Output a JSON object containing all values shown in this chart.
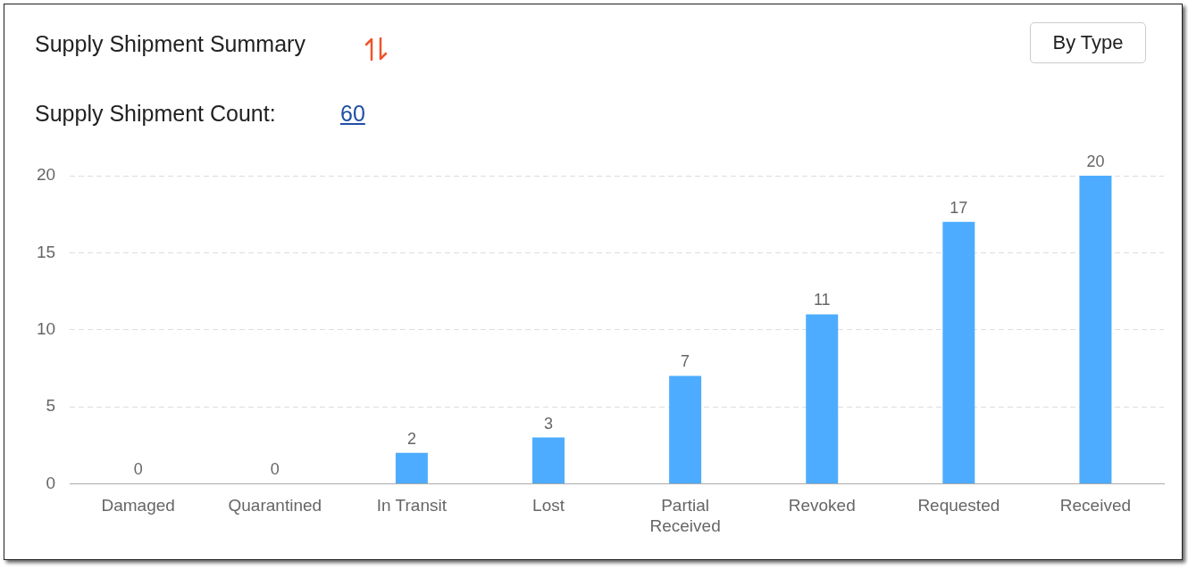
{
  "chart_data": {
    "type": "bar",
    "title": "Supply Shipment Summary",
    "subtitle": "Supply Shipment Count:",
    "annotations": [
      "60",
      "By Type"
    ],
    "categories": [
      "Damaged",
      "Quarantined",
      "In Transit",
      "Lost",
      "Partial Received",
      "Revoked",
      "Requested",
      "Received"
    ],
    "values": [
      0,
      0,
      2,
      3,
      7,
      11,
      17,
      20
    ],
    "color": "#4dacff",
    "ylim": [
      0,
      20
    ],
    "yticks": [
      0,
      5,
      10,
      15,
      20
    ],
    "grid": "y",
    "legend": false,
    "data_labels": true
  }
}
